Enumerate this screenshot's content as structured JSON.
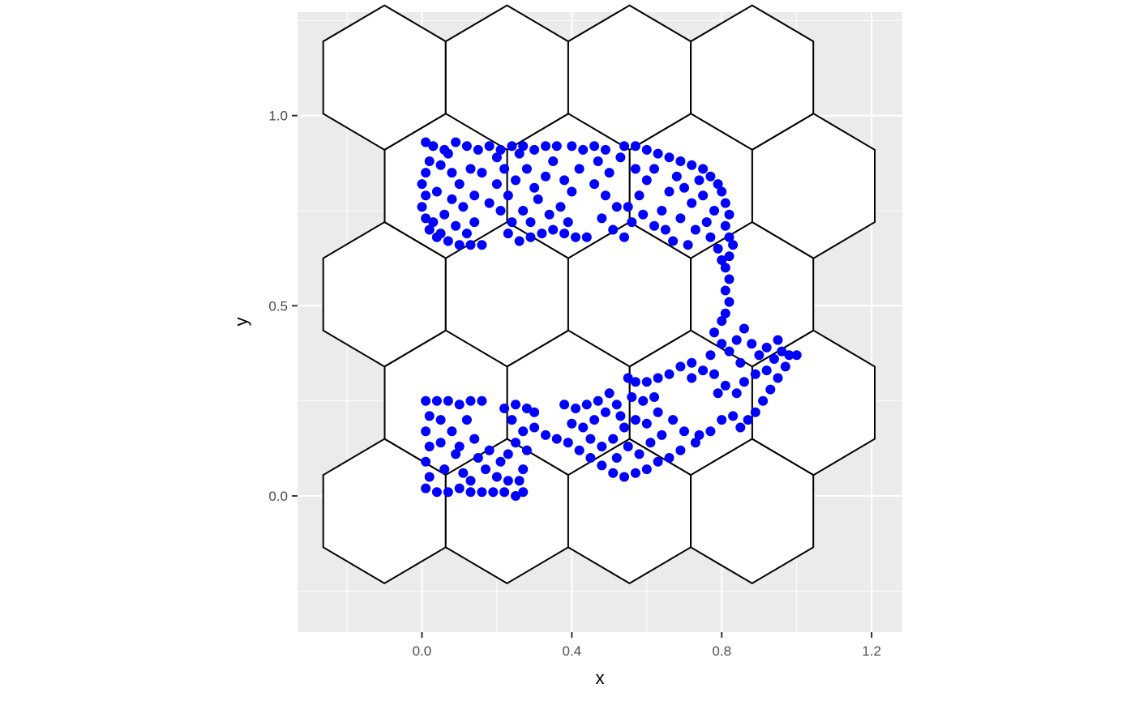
{
  "chart_data": {
    "type": "scatter",
    "title": "",
    "xlabel": "x",
    "ylabel": "y",
    "xlim": [
      -0.332,
      1.282
    ],
    "ylim": [
      -0.358,
      1.272
    ],
    "x_ticks": [
      {
        "value": 0.0,
        "label": "0.0"
      },
      {
        "value": 0.4,
        "label": "0.4"
      },
      {
        "value": 0.8,
        "label": "0.8"
      },
      {
        "value": 1.2,
        "label": "1.2"
      }
    ],
    "y_ticks": [
      {
        "value": 0.0,
        "label": "0.0"
      },
      {
        "value": 0.5,
        "label": "0.5"
      },
      {
        "value": 1.0,
        "label": "1.0"
      }
    ],
    "x_minor": [
      -0.2,
      0.2,
      0.6,
      1.0
    ],
    "y_minor": [
      -0.25,
      0.25,
      0.75,
      1.25
    ],
    "grid": true,
    "panel_background": "#ebebeb",
    "point_color": "#0000ff",
    "hex_grid": {
      "hex_width": 0.327,
      "hex_height": 0.38,
      "centers": [
        {
          "x": -0.1,
          "y": 1.1
        },
        {
          "x": 0.227,
          "y": 1.1
        },
        {
          "x": 0.554,
          "y": 1.1
        },
        {
          "x": 0.881,
          "y": 1.1
        },
        {
          "x": 0.064,
          "y": 0.815
        },
        {
          "x": 0.391,
          "y": 0.815
        },
        {
          "x": 0.718,
          "y": 0.815
        },
        {
          "x": 1.045,
          "y": 0.815
        },
        {
          "x": -0.1,
          "y": 0.53
        },
        {
          "x": 0.227,
          "y": 0.53
        },
        {
          "x": 0.554,
          "y": 0.53
        },
        {
          "x": 0.881,
          "y": 0.53
        },
        {
          "x": 0.064,
          "y": 0.245
        },
        {
          "x": 0.391,
          "y": 0.245
        },
        {
          "x": 0.718,
          "y": 0.245
        },
        {
          "x": 1.045,
          "y": 0.245
        },
        {
          "x": -0.1,
          "y": -0.04
        },
        {
          "x": 0.227,
          "y": -0.04
        },
        {
          "x": 0.554,
          "y": -0.04
        },
        {
          "x": 0.881,
          "y": -0.04
        }
      ]
    },
    "series": [
      {
        "points": [
          [
            0.01,
            0.93
          ],
          [
            0.03,
            0.92
          ],
          [
            0.06,
            0.91
          ],
          [
            0.09,
            0.93
          ],
          [
            0.12,
            0.92
          ],
          [
            0.15,
            0.91
          ],
          [
            0.18,
            0.92
          ],
          [
            0.21,
            0.91
          ],
          [
            0.24,
            0.92
          ],
          [
            0.27,
            0.92
          ],
          [
            0.3,
            0.91
          ],
          [
            0.33,
            0.92
          ],
          [
            0.36,
            0.92
          ],
          [
            0.4,
            0.92
          ],
          [
            0.43,
            0.91
          ],
          [
            0.46,
            0.92
          ],
          [
            0.49,
            0.91
          ],
          [
            0.54,
            0.92
          ],
          [
            0.57,
            0.92
          ],
          [
            0.6,
            0.91
          ],
          [
            0.63,
            0.9
          ],
          [
            0.66,
            0.89
          ],
          [
            0.69,
            0.88
          ],
          [
            0.72,
            0.87
          ],
          [
            0.75,
            0.86
          ],
          [
            0.77,
            0.84
          ],
          [
            0.79,
            0.82
          ],
          [
            0.8,
            0.8
          ],
          [
            0.81,
            0.77
          ],
          [
            0.82,
            0.74
          ],
          [
            0.81,
            0.71
          ],
          [
            0.82,
            0.68
          ],
          [
            0.83,
            0.66
          ],
          [
            0.82,
            0.63
          ],
          [
            0.81,
            0.6
          ],
          [
            0.82,
            0.57
          ],
          [
            0.81,
            0.54
          ],
          [
            0.82,
            0.51
          ],
          [
            0.81,
            0.48
          ],
          [
            0.8,
            0.46
          ],
          [
            0.02,
            0.88
          ],
          [
            0.01,
            0.85
          ],
          [
            0.0,
            0.82
          ],
          [
            0.01,
            0.79
          ],
          [
            0.0,
            0.76
          ],
          [
            0.01,
            0.73
          ],
          [
            0.02,
            0.7
          ],
          [
            0.04,
            0.68
          ],
          [
            0.07,
            0.67
          ],
          [
            0.1,
            0.66
          ],
          [
            0.13,
            0.66
          ],
          [
            0.16,
            0.66
          ],
          [
            0.05,
            0.87
          ],
          [
            0.08,
            0.85
          ],
          [
            0.04,
            0.8
          ],
          [
            0.08,
            0.78
          ],
          [
            0.11,
            0.76
          ],
          [
            0.06,
            0.74
          ],
          [
            0.03,
            0.72
          ],
          [
            0.09,
            0.71
          ],
          [
            0.05,
            0.69
          ],
          [
            0.12,
            0.69
          ],
          [
            0.14,
            0.72
          ],
          [
            0.1,
            0.82
          ],
          [
            0.07,
            0.9
          ],
          [
            0.13,
            0.86
          ],
          [
            0.14,
            0.79
          ],
          [
            0.2,
            0.89
          ],
          [
            0.22,
            0.86
          ],
          [
            0.2,
            0.82
          ],
          [
            0.23,
            0.79
          ],
          [
            0.21,
            0.75
          ],
          [
            0.24,
            0.72
          ],
          [
            0.23,
            0.69
          ],
          [
            0.26,
            0.67
          ],
          [
            0.29,
            0.68
          ],
          [
            0.32,
            0.69
          ],
          [
            0.35,
            0.7
          ],
          [
            0.38,
            0.69
          ],
          [
            0.41,
            0.68
          ],
          [
            0.44,
            0.68
          ],
          [
            0.26,
            0.9
          ],
          [
            0.28,
            0.86
          ],
          [
            0.25,
            0.83
          ],
          [
            0.3,
            0.81
          ],
          [
            0.33,
            0.84
          ],
          [
            0.31,
            0.78
          ],
          [
            0.27,
            0.75
          ],
          [
            0.34,
            0.74
          ],
          [
            0.29,
            0.72
          ],
          [
            0.37,
            0.76
          ],
          [
            0.35,
            0.88
          ],
          [
            0.38,
            0.83
          ],
          [
            0.4,
            0.8
          ],
          [
            0.42,
            0.86
          ],
          [
            0.39,
            0.72
          ],
          [
            0.18,
            0.77
          ],
          [
            0.16,
            0.85
          ],
          [
            0.47,
            0.88
          ],
          [
            0.5,
            0.85
          ],
          [
            0.46,
            0.82
          ],
          [
            0.49,
            0.79
          ],
          [
            0.52,
            0.76
          ],
          [
            0.48,
            0.73
          ],
          [
            0.51,
            0.7
          ],
          [
            0.54,
            0.68
          ],
          [
            0.56,
            0.72
          ],
          [
            0.55,
            0.76
          ],
          [
            0.58,
            0.79
          ],
          [
            0.6,
            0.83
          ],
          [
            0.62,
            0.86
          ],
          [
            0.59,
            0.74
          ],
          [
            0.62,
            0.71
          ],
          [
            0.65,
            0.7
          ],
          [
            0.64,
            0.75
          ],
          [
            0.66,
            0.8
          ],
          [
            0.68,
            0.84
          ],
          [
            0.7,
            0.81
          ],
          [
            0.72,
            0.77
          ],
          [
            0.69,
            0.73
          ],
          [
            0.73,
            0.7
          ],
          [
            0.76,
            0.72
          ],
          [
            0.78,
            0.75
          ],
          [
            0.75,
            0.79
          ],
          [
            0.74,
            0.83
          ],
          [
            0.77,
            0.68
          ],
          [
            0.79,
            0.65
          ],
          [
            0.8,
            0.62
          ],
          [
            0.71,
            0.66
          ],
          [
            0.67,
            0.67
          ],
          [
            0.53,
            0.89
          ],
          [
            0.57,
            0.86
          ],
          [
            0.78,
            0.43
          ],
          [
            0.8,
            0.4
          ],
          [
            0.77,
            0.37
          ],
          [
            0.82,
            0.38
          ],
          [
            0.84,
            0.41
          ],
          [
            0.86,
            0.44
          ],
          [
            0.88,
            0.4
          ],
          [
            0.9,
            0.37
          ],
          [
            0.92,
            0.39
          ],
          [
            0.94,
            0.36
          ],
          [
            0.96,
            0.38
          ],
          [
            0.98,
            0.37
          ],
          [
            1.0,
            0.37
          ],
          [
            0.97,
            0.34
          ],
          [
            0.95,
            0.31
          ],
          [
            0.93,
            0.28
          ],
          [
            0.91,
            0.25
          ],
          [
            0.89,
            0.22
          ],
          [
            0.87,
            0.2
          ],
          [
            0.85,
            0.18
          ],
          [
            0.83,
            0.21
          ],
          [
            0.8,
            0.2
          ],
          [
            0.77,
            0.17
          ],
          [
            0.74,
            0.16
          ],
          [
            0.89,
            0.32
          ],
          [
            0.86,
            0.3
          ],
          [
            0.84,
            0.27
          ],
          [
            0.81,
            0.29
          ],
          [
            0.78,
            0.32
          ],
          [
            0.75,
            0.33
          ],
          [
            0.72,
            0.35
          ],
          [
            0.69,
            0.34
          ],
          [
            0.66,
            0.32
          ],
          [
            0.63,
            0.31
          ],
          [
            0.6,
            0.3
          ],
          [
            0.57,
            0.3
          ],
          [
            0.55,
            0.31
          ],
          [
            0.92,
            0.33
          ],
          [
            0.95,
            0.41
          ],
          [
            0.85,
            0.35
          ],
          [
            0.79,
            0.27
          ],
          [
            0.72,
            0.31
          ],
          [
            0.01,
            0.25
          ],
          [
            0.04,
            0.25
          ],
          [
            0.07,
            0.25
          ],
          [
            0.1,
            0.24
          ],
          [
            0.13,
            0.25
          ],
          [
            0.16,
            0.25
          ],
          [
            0.02,
            0.21
          ],
          [
            0.01,
            0.17
          ],
          [
            0.02,
            0.13
          ],
          [
            0.01,
            0.09
          ],
          [
            0.02,
            0.05
          ],
          [
            0.01,
            0.02
          ],
          [
            0.04,
            0.01
          ],
          [
            0.07,
            0.01
          ],
          [
            0.1,
            0.02
          ],
          [
            0.13,
            0.01
          ],
          [
            0.16,
            0.01
          ],
          [
            0.19,
            0.01
          ],
          [
            0.22,
            0.01
          ],
          [
            0.25,
            0.0
          ],
          [
            0.27,
            0.01
          ],
          [
            0.26,
            0.04
          ],
          [
            0.27,
            0.07
          ],
          [
            0.05,
            0.2
          ],
          [
            0.08,
            0.17
          ],
          [
            0.05,
            0.14
          ],
          [
            0.09,
            0.11
          ],
          [
            0.06,
            0.07
          ],
          [
            0.11,
            0.06
          ],
          [
            0.12,
            0.2
          ],
          [
            0.14,
            0.15
          ],
          [
            0.1,
            0.13
          ],
          [
            0.15,
            0.1
          ],
          [
            0.13,
            0.04
          ],
          [
            0.17,
            0.07
          ],
          [
            0.18,
            0.12
          ],
          [
            0.2,
            0.05
          ],
          [
            0.23,
            0.04
          ],
          [
            0.21,
            0.09
          ],
          [
            0.22,
            0.23
          ],
          [
            0.25,
            0.24
          ],
          [
            0.28,
            0.23
          ],
          [
            0.24,
            0.2
          ],
          [
            0.27,
            0.17
          ],
          [
            0.25,
            0.14
          ],
          [
            0.28,
            0.12
          ],
          [
            0.23,
            0.11
          ],
          [
            0.3,
            0.18
          ],
          [
            0.3,
            0.22
          ],
          [
            0.33,
            0.16
          ],
          [
            0.36,
            0.15
          ],
          [
            0.39,
            0.14
          ],
          [
            0.42,
            0.12
          ],
          [
            0.45,
            0.1
          ],
          [
            0.48,
            0.08
          ],
          [
            0.51,
            0.06
          ],
          [
            0.54,
            0.05
          ],
          [
            0.57,
            0.06
          ],
          [
            0.6,
            0.07
          ],
          [
            0.63,
            0.09
          ],
          [
            0.66,
            0.1
          ],
          [
            0.69,
            0.12
          ],
          [
            0.38,
            0.24
          ],
          [
            0.41,
            0.23
          ],
          [
            0.44,
            0.24
          ],
          [
            0.47,
            0.25
          ],
          [
            0.5,
            0.27
          ],
          [
            0.4,
            0.19
          ],
          [
            0.43,
            0.18
          ],
          [
            0.46,
            0.2
          ],
          [
            0.49,
            0.22
          ],
          [
            0.52,
            0.24
          ],
          [
            0.45,
            0.15
          ],
          [
            0.48,
            0.13
          ],
          [
            0.51,
            0.15
          ],
          [
            0.54,
            0.18
          ],
          [
            0.57,
            0.2
          ],
          [
            0.55,
            0.13
          ],
          [
            0.58,
            0.11
          ],
          [
            0.61,
            0.14
          ],
          [
            0.64,
            0.16
          ],
          [
            0.6,
            0.19
          ],
          [
            0.63,
            0.22
          ],
          [
            0.67,
            0.2
          ],
          [
            0.7,
            0.17
          ],
          [
            0.73,
            0.14
          ],
          [
            0.56,
            0.26
          ],
          [
            0.59,
            0.25
          ],
          [
            0.62,
            0.26
          ],
          [
            0.52,
            0.1
          ],
          [
            0.53,
            0.21
          ]
        ]
      }
    ]
  }
}
